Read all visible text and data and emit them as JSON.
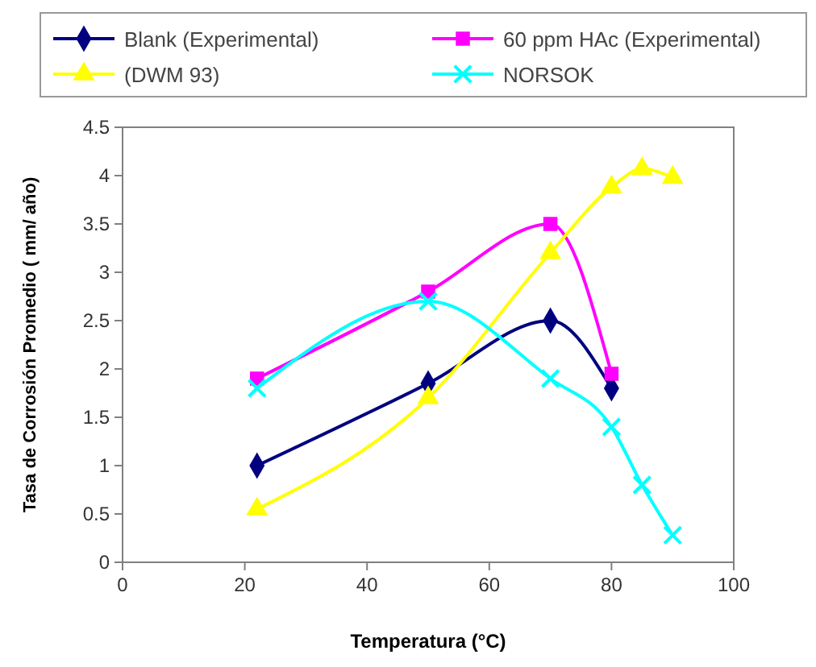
{
  "chart_data": {
    "type": "line",
    "xlabel": "Temperatura (°C)",
    "ylabel": "Tasa de Corrosión Promedio ( mm/ año)",
    "xlim": [
      0,
      100
    ],
    "xticks": [
      0,
      20,
      40,
      60,
      80,
      100
    ],
    "ylim": [
      0,
      4.5
    ],
    "yticks": [
      0,
      0.5,
      1,
      1.5,
      2,
      2.5,
      3,
      3.5,
      4,
      4.5
    ],
    "grid": false,
    "legend": "top",
    "series": [
      {
        "name": "Blank (Experimental)",
        "color": "#000080",
        "marker": "diamond",
        "x": [
          22,
          50,
          70,
          80
        ],
        "values": [
          1.0,
          1.85,
          2.5,
          1.8
        ]
      },
      {
        "name": "60 ppm HAc (Experimental)",
        "color": "#ff00ff",
        "marker": "square",
        "x": [
          22,
          50,
          70,
          80
        ],
        "values": [
          1.9,
          2.8,
          3.5,
          1.95
        ]
      },
      {
        "name": "(DWM 93)",
        "color": "#ffff00",
        "marker": "triangle",
        "x": [
          22,
          50,
          70,
          80,
          85,
          90
        ],
        "values": [
          0.55,
          1.7,
          3.2,
          3.88,
          4.07,
          3.98
        ]
      },
      {
        "name": "NORSOK",
        "color": "#00ffff",
        "marker": "cross",
        "x": [
          22,
          50,
          70,
          80,
          85,
          90
        ],
        "values": [
          1.8,
          2.7,
          1.9,
          1.4,
          0.8,
          0.28
        ]
      }
    ]
  }
}
